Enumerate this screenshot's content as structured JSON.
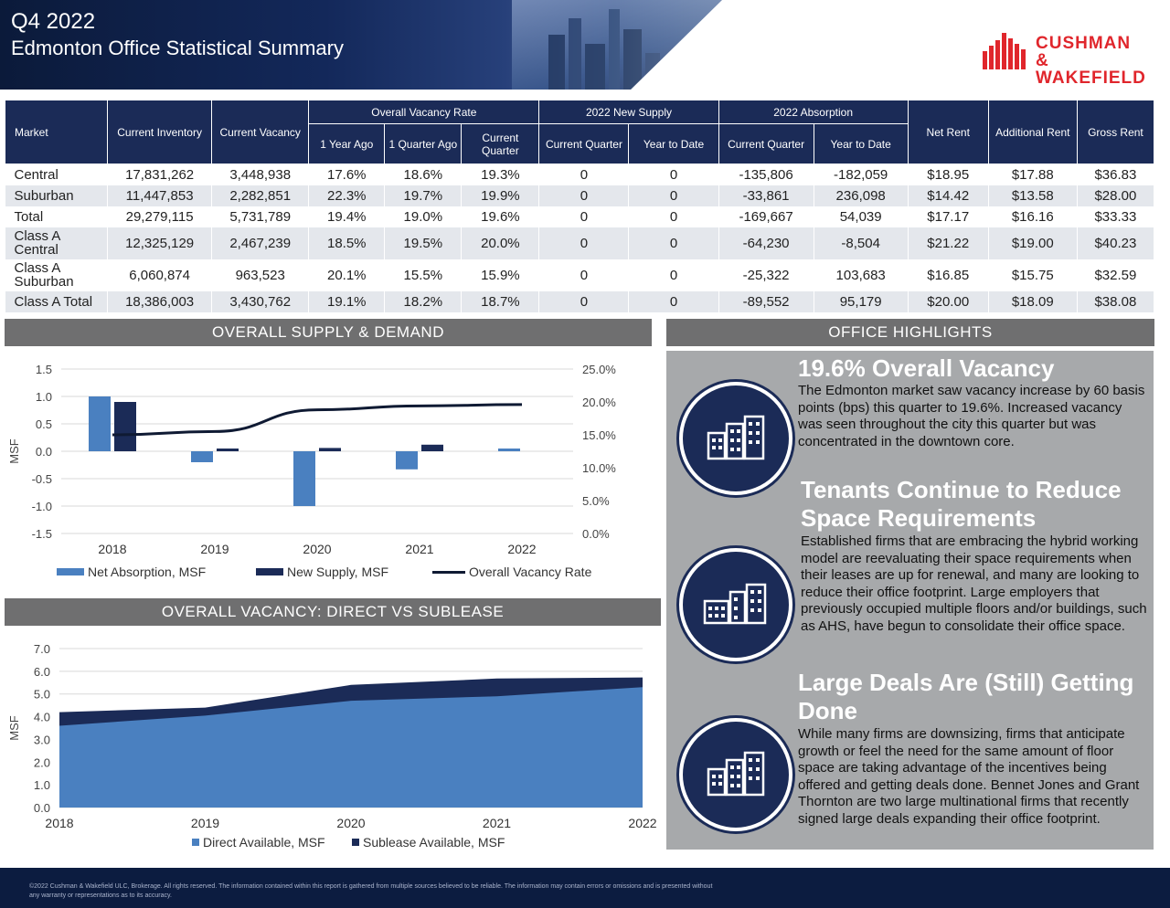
{
  "header": {
    "quarter": "Q4 2022",
    "title": "Edmonton Office Statistical Summary",
    "logo_line1": "CUSHMAN &",
    "logo_line2": "WAKEFIELD"
  },
  "table": {
    "headers": {
      "market": "Market",
      "current_inventory": "Current Inventory",
      "current_vacancy": "Current Vacancy",
      "overall_vacancy_rate": "Overall Vacancy Rate",
      "new_supply": "2022 New Supply",
      "absorption": "2022 Absorption",
      "net_rent": "Net Rent",
      "additional_rent": "Additional Rent",
      "gross_rent": "Gross Rent",
      "year_ago": "1 Year Ago",
      "quarter_ago": "1 Quarter Ago",
      "current_quarter": "Current Quarter",
      "supply_current_quarter": "Current Quarter",
      "supply_ytd": "Year to Date",
      "abs_current_quarter": "Current Quarter",
      "abs_ytd": "Year to Date"
    },
    "rows": [
      {
        "market": "Central",
        "inventory": "17,831,262",
        "vacancy": "3,448,938",
        "yr_ago": "17.6%",
        "qtr_ago": "18.6%",
        "cur": "19.3%",
        "sup_q": "0",
        "sup_ytd": "0",
        "abs_q": "-135,806",
        "abs_ytd": "-182,059",
        "net": "$18.95",
        "add": "$17.88",
        "gross": "$36.83"
      },
      {
        "market": "Suburban",
        "inventory": "11,447,853",
        "vacancy": "2,282,851",
        "yr_ago": "22.3%",
        "qtr_ago": "19.7%",
        "cur": "19.9%",
        "sup_q": "0",
        "sup_ytd": "0",
        "abs_q": "-33,861",
        "abs_ytd": "236,098",
        "net": "$14.42",
        "add": "$13.58",
        "gross": "$28.00"
      },
      {
        "market": "Total",
        "inventory": "29,279,115",
        "vacancy": "5,731,789",
        "yr_ago": "19.4%",
        "qtr_ago": "19.0%",
        "cur": "19.6%",
        "sup_q": "0",
        "sup_ytd": "0",
        "abs_q": "-169,667",
        "abs_ytd": "54,039",
        "net": "$17.17",
        "add": "$16.16",
        "gross": "$33.33"
      },
      {
        "market": "Class A Central",
        "inventory": "12,325,129",
        "vacancy": "2,467,239",
        "yr_ago": "18.5%",
        "qtr_ago": "19.5%",
        "cur": "20.0%",
        "sup_q": "0",
        "sup_ytd": "0",
        "abs_q": "-64,230",
        "abs_ytd": "-8,504",
        "net": "$21.22",
        "add": "$19.00",
        "gross": "$40.23"
      },
      {
        "market": "Class A Suburban",
        "inventory": "6,060,874",
        "vacancy": "963,523",
        "yr_ago": "20.1%",
        "qtr_ago": "15.5%",
        "cur": "15.9%",
        "sup_q": "0",
        "sup_ytd": "0",
        "abs_q": "-25,322",
        "abs_ytd": "103,683",
        "net": "$16.85",
        "add": "$15.75",
        "gross": "$32.59"
      },
      {
        "market": "Class A Total",
        "inventory": "18,386,003",
        "vacancy": "3,430,762",
        "yr_ago": "19.1%",
        "qtr_ago": "18.2%",
        "cur": "18.7%",
        "sup_q": "0",
        "sup_ytd": "0",
        "abs_q": "-89,552",
        "abs_ytd": "95,179",
        "net": "$20.00",
        "add": "$18.09",
        "gross": "$38.08"
      }
    ]
  },
  "sections": {
    "supply_demand": "OVERALL SUPPLY & DEMAND",
    "highlights": "OFFICE HIGHLIGHTS",
    "direct_sublease": "OVERALL VACANCY: DIRECT VS SUBLEASE"
  },
  "colors": {
    "navy": "#1b2b57",
    "blue": "#4a80c0",
    "gray_bar": "#6f6f70",
    "brand_red": "#e0262c"
  },
  "chart_data": [
    {
      "type": "bar",
      "categories": [
        "2018",
        "2019",
        "2020",
        "2021",
        "2022"
      ],
      "series": [
        {
          "name": "Net Absorption, MSF",
          "values": [
            1.0,
            -0.2,
            -1.0,
            -0.33,
            0.05
          ],
          "color": "#4a80c0"
        },
        {
          "name": "New Supply, MSF",
          "values": [
            0.9,
            0.05,
            0.06,
            0.12,
            0.0
          ],
          "color": "#1b2b57"
        },
        {
          "name": "Overall Vacancy Rate",
          "type": "line",
          "axis": "secondary",
          "values": [
            15.0,
            15.5,
            18.8,
            19.4,
            19.6
          ],
          "color": "#0f1a33"
        }
      ],
      "ylabel": "MSF",
      "ylim": [
        -1.5,
        1.5
      ],
      "yticks": [
        "1.5",
        "1.0",
        "0.5",
        "0.0",
        "-0.5",
        "-1.0",
        "-1.5"
      ],
      "y2lim": [
        0,
        25
      ],
      "y2ticks": [
        "25.0%",
        "20.0%",
        "15.0%",
        "10.0%",
        "5.0%",
        "0.0%"
      ],
      "grid": true,
      "legend": "bottom"
    },
    {
      "type": "area",
      "x": [
        "2018",
        "2019",
        "2020",
        "2021",
        "2022"
      ],
      "series": [
        {
          "name": "Direct Available, MSF",
          "values": [
            3.6,
            4.05,
            4.7,
            4.9,
            5.3
          ],
          "color": "#4a80c0"
        },
        {
          "name": "Sublease Available, MSF",
          "values": [
            0.6,
            0.35,
            0.7,
            0.78,
            0.43
          ],
          "color": "#1b2b57"
        }
      ],
      "ylabel": "MSF",
      "ylim": [
        0,
        7
      ],
      "yticks": [
        "7.0",
        "6.0",
        "5.0",
        "4.0",
        "3.0",
        "2.0",
        "1.0",
        "0.0"
      ],
      "grid": true,
      "stacked": true,
      "legend": "bottom"
    }
  ],
  "highlights": [
    {
      "icon": "office-buildings-icon",
      "title": "19.6% Overall Vacancy",
      "body": "The Edmonton market saw vacancy increase by 60 basis points (bps) this quarter to 19.6%. Increased vacancy was seen throughout the city this quarter but was concentrated in the downtown core."
    },
    {
      "icon": "office-buildings-icon",
      "title": "Tenants Continue to Reduce Space Requirements",
      "body": "Established firms that are embracing the hybrid working model are reevaluating their space requirements when their leases are up for renewal, and many are looking to reduce their office footprint. Large employers that previously occupied multiple floors and/or buildings, such as AHS, have begun to consolidate their office space."
    },
    {
      "icon": "office-buildings-icon",
      "title": "Large Deals Are (Still) Getting Done",
      "body": "While many firms are downsizing, firms that anticipate growth or feel the need for the same amount of floor space are taking advantage of the incentives being offered and getting deals done. Bennet Jones and Grant Thornton are two large multinational firms that recently signed large deals expanding their office footprint."
    }
  ],
  "footer": {
    "text": "©2022 Cushman & Wakefield ULC, Brokerage. All rights reserved. The information contained within this report is gathered from multiple sources believed to be reliable. The information may contain errors or omissions and is presented without any warranty or representations as to its accuracy."
  }
}
